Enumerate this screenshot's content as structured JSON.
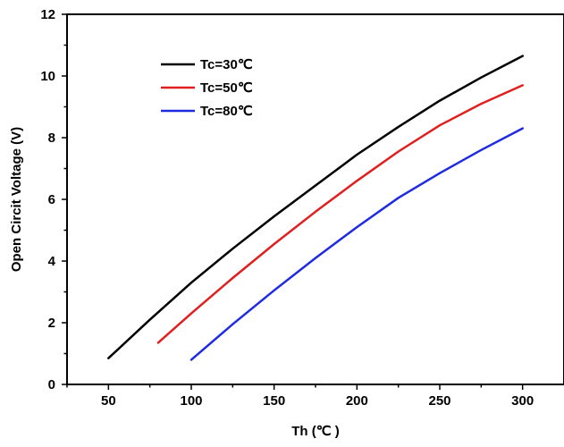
{
  "chart_data": {
    "type": "line",
    "xlabel": "Th (℃ )",
    "ylabel": "Open Circit Voltage (V)",
    "xlim": [
      25,
      325
    ],
    "ylim": [
      0,
      12
    ],
    "xticks": [
      50,
      100,
      150,
      200,
      250,
      300
    ],
    "yticks": [
      0,
      2,
      4,
      6,
      8,
      10,
      12
    ],
    "grid": false,
    "legend_position": "top-left",
    "series": [
      {
        "name": "Tc=30℃",
        "color": "#000000",
        "x": [
          50,
          75,
          100,
          125,
          150,
          175,
          200,
          225,
          250,
          275,
          300
        ],
        "y": [
          0.85,
          2.1,
          3.3,
          4.4,
          5.45,
          6.45,
          7.45,
          8.35,
          9.2,
          9.95,
          10.65
        ]
      },
      {
        "name": "Tc=50℃",
        "color": "#e02020",
        "x": [
          80,
          100,
          125,
          150,
          175,
          200,
          225,
          250,
          275,
          300
        ],
        "y": [
          1.35,
          2.3,
          3.45,
          4.55,
          5.6,
          6.6,
          7.55,
          8.4,
          9.1,
          9.7
        ]
      },
      {
        "name": "Tc=80℃",
        "color": "#1e2be0",
        "x": [
          100,
          125,
          150,
          175,
          200,
          225,
          250,
          275,
          300
        ],
        "y": [
          0.8,
          1.95,
          3.05,
          4.1,
          5.1,
          6.05,
          6.85,
          7.6,
          8.3
        ]
      }
    ]
  }
}
